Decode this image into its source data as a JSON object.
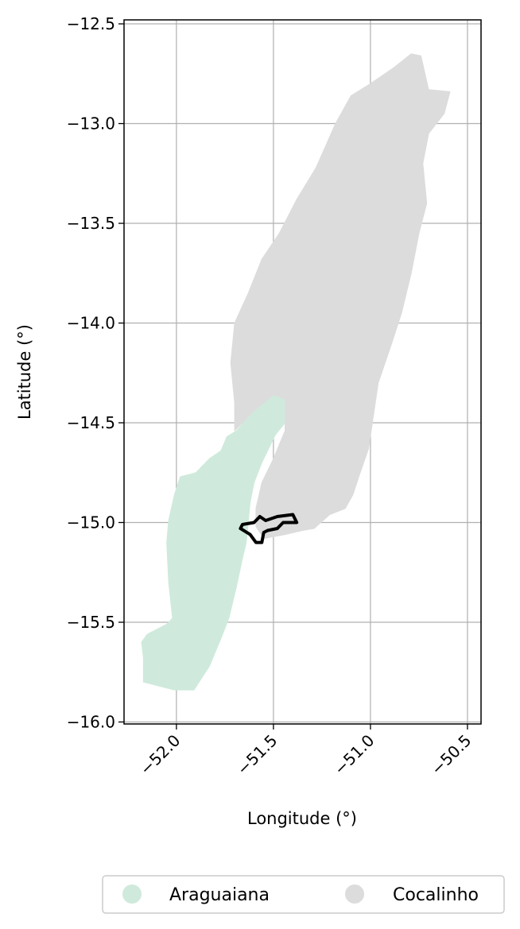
{
  "chart_data": {
    "type": "map",
    "xlabel": "Longitude (°)",
    "ylabel": "Latitude (°)",
    "xlim": [
      -52.27,
      -50.43
    ],
    "ylim": [
      -16.01,
      -12.48
    ],
    "xticks": [
      -52.0,
      -51.5,
      -51.0,
      -50.5
    ],
    "xtick_labels": [
      "−52.0",
      "−51.5",
      "−51.0",
      "−50.5"
    ],
    "yticks": [
      -12.5,
      -13.0,
      -13.5,
      -14.0,
      -14.5,
      -15.0,
      -15.5,
      -16.0
    ],
    "ytick_labels": [
      "−12.5",
      "−13.0",
      "−13.5",
      "−14.0",
      "−14.5",
      "−15.0",
      "−15.5",
      "−16.0"
    ],
    "grid": true,
    "legend_position": "bottom-center",
    "regions": [
      {
        "name": "Araguaiana",
        "color": "#cfeadc",
        "outline_lonlat": [
          [
            -51.54,
            -14.36
          ],
          [
            -51.47,
            -14.36
          ],
          [
            -51.44,
            -14.38
          ],
          [
            -51.44,
            -14.5
          ],
          [
            -51.49,
            -14.56
          ],
          [
            -51.56,
            -14.7
          ],
          [
            -51.6,
            -14.8
          ],
          [
            -51.62,
            -14.9
          ],
          [
            -51.63,
            -15.0
          ],
          [
            -51.64,
            -15.1
          ],
          [
            -51.66,
            -15.18
          ],
          [
            -51.69,
            -15.32
          ],
          [
            -51.73,
            -15.48
          ],
          [
            -51.77,
            -15.58
          ],
          [
            -51.83,
            -15.72
          ],
          [
            -51.91,
            -15.84
          ],
          [
            -52.01,
            -15.84
          ],
          [
            -52.13,
            -15.81
          ],
          [
            -52.17,
            -15.8
          ],
          [
            -52.17,
            -15.68
          ],
          [
            -52.18,
            -15.6
          ],
          [
            -52.15,
            -15.56
          ],
          [
            -52.05,
            -15.51
          ],
          [
            -52.02,
            -15.48
          ],
          [
            -52.04,
            -15.3
          ],
          [
            -52.05,
            -15.1
          ],
          [
            -52.04,
            -14.99
          ],
          [
            -52.01,
            -14.86
          ],
          [
            -51.98,
            -14.77
          ],
          [
            -51.9,
            -14.75
          ],
          [
            -51.83,
            -14.68
          ],
          [
            -51.77,
            -14.64
          ],
          [
            -51.74,
            -14.57
          ],
          [
            -51.69,
            -14.54
          ],
          [
            -51.6,
            -14.44
          ]
        ]
      },
      {
        "name": "Cocalinho",
        "color": "#dcdcdc",
        "outline_lonlat": [
          [
            -50.79,
            -12.65
          ],
          [
            -50.74,
            -12.66
          ],
          [
            -50.7,
            -12.83
          ],
          [
            -50.59,
            -12.84
          ],
          [
            -50.62,
            -12.95
          ],
          [
            -50.7,
            -13.05
          ],
          [
            -50.73,
            -13.2
          ],
          [
            -50.71,
            -13.4
          ],
          [
            -50.75,
            -13.55
          ],
          [
            -50.79,
            -13.75
          ],
          [
            -50.84,
            -13.95
          ],
          [
            -50.89,
            -14.1
          ],
          [
            -50.96,
            -14.3
          ],
          [
            -50.99,
            -14.5
          ],
          [
            -51.01,
            -14.63
          ],
          [
            -51.06,
            -14.77
          ],
          [
            -51.09,
            -14.86
          ],
          [
            -51.13,
            -14.93
          ],
          [
            -51.21,
            -14.96
          ],
          [
            -51.29,
            -15.03
          ],
          [
            -51.35,
            -15.04
          ],
          [
            -51.44,
            -15.06
          ],
          [
            -51.55,
            -15.08
          ],
          [
            -51.59,
            -15.02
          ],
          [
            -51.59,
            -14.93
          ],
          [
            -51.56,
            -14.8
          ],
          [
            -51.5,
            -14.68
          ],
          [
            -51.44,
            -14.54
          ],
          [
            -51.44,
            -14.38
          ],
          [
            -51.5,
            -14.36
          ],
          [
            -51.6,
            -14.44
          ],
          [
            -51.7,
            -14.54
          ],
          [
            -51.7,
            -14.4
          ],
          [
            -51.72,
            -14.2
          ],
          [
            -51.7,
            -14.0
          ],
          [
            -51.63,
            -13.85
          ],
          [
            -51.56,
            -13.68
          ],
          [
            -51.47,
            -13.55
          ],
          [
            -51.38,
            -13.38
          ],
          [
            -51.28,
            -13.22
          ],
          [
            -51.18,
            -13.0
          ],
          [
            -51.1,
            -12.86
          ],
          [
            -51.0,
            -12.8
          ],
          [
            -50.88,
            -12.72
          ]
        ]
      }
    ],
    "highlight_outline": {
      "color": "#000000",
      "outline_lonlat": [
        [
          -51.66,
          -15.01
        ],
        [
          -51.6,
          -15.0
        ],
        [
          -51.57,
          -14.97
        ],
        [
          -51.54,
          -14.99
        ],
        [
          -51.48,
          -14.97
        ],
        [
          -51.4,
          -14.96
        ],
        [
          -51.38,
          -15.0
        ],
        [
          -51.45,
          -15.0
        ],
        [
          -51.48,
          -15.03
        ],
        [
          -51.53,
          -15.04
        ],
        [
          -51.55,
          -15.05
        ],
        [
          -51.56,
          -15.1
        ],
        [
          -51.59,
          -15.1
        ],
        [
          -51.62,
          -15.06
        ],
        [
          -51.67,
          -15.03
        ]
      ]
    }
  },
  "legend": {
    "items": [
      {
        "label": "Araguaiana",
        "color": "#cfeadc"
      },
      {
        "label": "Cocalinho",
        "color": "#dcdcdc"
      }
    ]
  }
}
